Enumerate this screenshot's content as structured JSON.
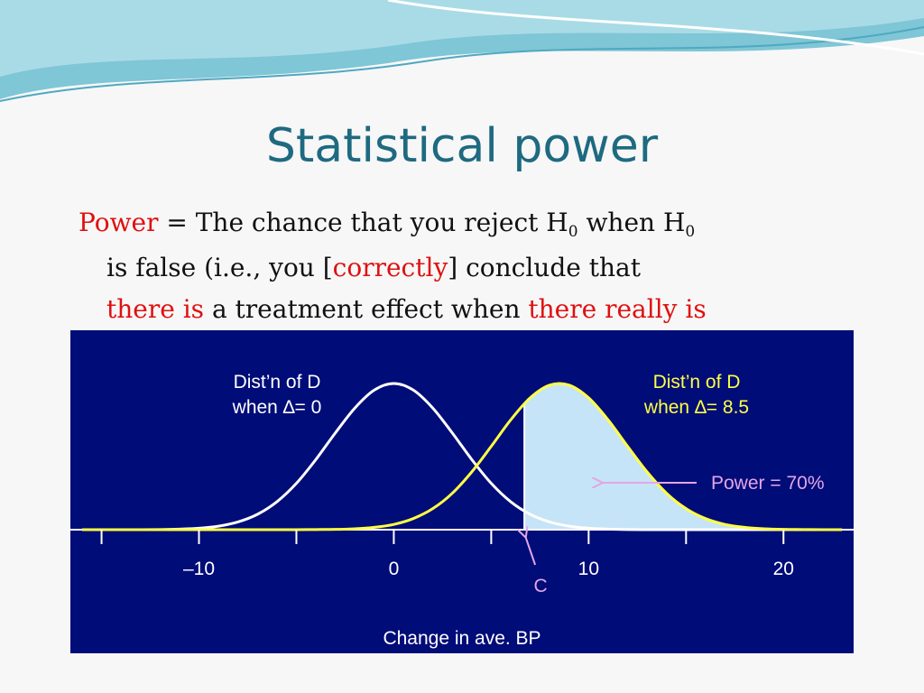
{
  "slide": {
    "title": "Statistical power",
    "body": {
      "lines": [
        [
          "Power",
          " = The chance that you reject H",
          "0",
          " when H",
          "0"
        ],
        [
          "is false (i.e., you [",
          "correctly",
          "] conclude that"
        ],
        [
          "there is",
          " a treatment effect when ",
          "there really is"
        ]
      ]
    }
  },
  "chart_data": {
    "type": "line",
    "x": [
      -16,
      -15,
      -14,
      -13,
      -12,
      -11,
      -10,
      -9,
      -8,
      -7,
      -6,
      -5,
      -4,
      -3,
      -2,
      -1,
      0,
      1,
      2,
      3,
      4,
      5,
      6,
      7,
      8,
      9,
      10,
      11,
      12,
      13,
      14,
      15,
      16,
      17,
      18,
      19,
      20,
      21,
      22,
      23
    ],
    "xlim": [
      -16.6,
      23.6
    ],
    "ylim": [
      0,
      1
    ],
    "xticks": [
      {
        "value": -10,
        "label": "–10"
      },
      0,
      10,
      20
    ],
    "minor_xticks": [
      -15,
      -5,
      5,
      15
    ],
    "xlabel": "Change in ave. BP",
    "series": [
      {
        "label": [
          "Dist’n of D",
          "when ∆= 0"
        ],
        "color": "#ffffff",
        "values": [
          0,
          0,
          0,
          0,
          0.001,
          0.004,
          0.01,
          0.024,
          0.053,
          0.105,
          0.191,
          0.317,
          0.48,
          0.662,
          0.832,
          0.955,
          1,
          0.955,
          0.832,
          0.662,
          0.48,
          0.317,
          0.191,
          0.105,
          0.053,
          0.024,
          0.01,
          0.004,
          0.001,
          0,
          0,
          0,
          0,
          0,
          0,
          0,
          0,
          0,
          0,
          0
        ]
      },
      {
        "label": [
          "Dist’n of D",
          "when ∆= 8.5"
        ],
        "color": "#ffff44",
        "values": [
          0,
          0,
          0,
          0,
          0,
          0,
          0,
          0,
          0,
          0,
          0,
          0,
          0.001,
          0.002,
          0.006,
          0.016,
          0.036,
          0.076,
          0.144,
          0.249,
          0.395,
          0.57,
          0.751,
          0.902,
          0.989,
          0.989,
          0.902,
          0.751,
          0.57,
          0.395,
          0.249,
          0.144,
          0.076,
          0.036,
          0.016,
          0.006,
          0.002,
          0.001,
          0,
          0
        ]
      }
    ],
    "shade_from": 6.7,
    "shade_color": "#c6e4f7",
    "critical_label": "C",
    "annotation": {
      "text": "Power = 70%",
      "color": "#e3a6e6"
    }
  }
}
